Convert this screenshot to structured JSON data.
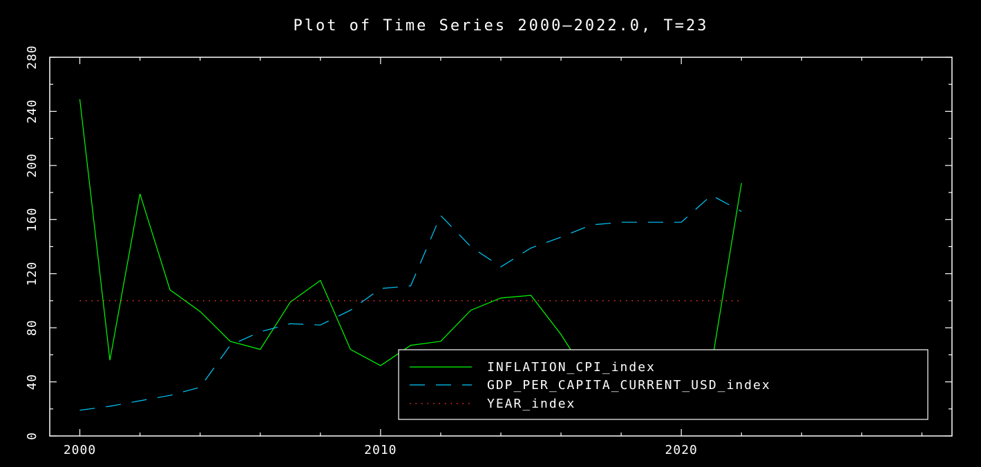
{
  "chart_data": {
    "type": "line",
    "title": "Plot of Time Series 2000—2022.0, T=23",
    "xlabel": "",
    "ylabel": "",
    "xlim": [
      1999,
      2029
    ],
    "ylim": [
      0,
      280
    ],
    "x_ticks": [
      2000,
      2010,
      2020
    ],
    "y_ticks": [
      0,
      40,
      80,
      120,
      160,
      200,
      240,
      280
    ],
    "grid": false,
    "legend_position": "bottom-right",
    "x": [
      2000,
      2001,
      2002,
      2003,
      2004,
      2005,
      2006,
      2007,
      2008,
      2009,
      2010,
      2011,
      2012,
      2013,
      2014,
      2015,
      2016,
      2017,
      2018,
      2019,
      2020,
      2021,
      2022
    ],
    "series": [
      {
        "name": "INFLATION_CPI_index",
        "color": "#00ff00",
        "style": "solid",
        "values": [
          249,
          56,
          179,
          108,
          92,
          70,
          64,
          99,
          115,
          64,
          52,
          67,
          70,
          93,
          102,
          104,
          75,
          40,
          30,
          28,
          26,
          52,
          187
        ]
      },
      {
        "name": "GDP_PER_CAPITA_CURRENT_USD_index",
        "color": "#00ccff",
        "style": "dashed",
        "values": [
          19,
          22,
          26,
          30,
          36,
          67,
          77,
          83,
          82,
          93,
          109,
          111,
          163,
          140,
          125,
          139,
          147,
          156,
          158,
          158,
          158,
          178,
          166
        ]
      },
      {
        "name": "YEAR_index",
        "color": "#ff3030",
        "style": "dotted",
        "values": [
          100,
          100,
          100,
          100,
          100,
          100,
          100,
          100,
          100,
          100,
          100,
          100,
          100,
          100,
          100,
          100,
          100,
          100,
          100,
          100,
          100,
          100,
          100
        ]
      }
    ]
  }
}
